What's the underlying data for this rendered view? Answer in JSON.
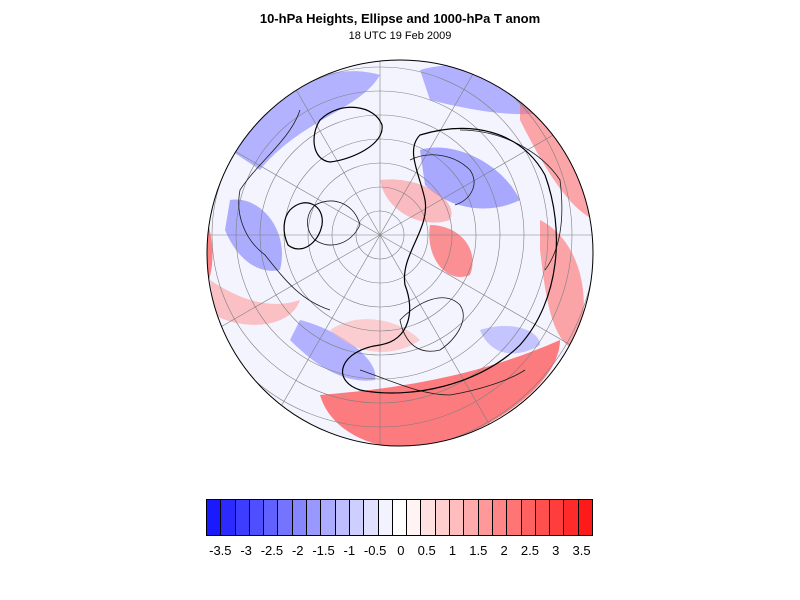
{
  "title": "10-hPa Heights, Ellipse and 1000-hPa T anom",
  "subtitle": "18 UTC 19 Feb 2009",
  "colorbar": {
    "colors": [
      "#1a1aff",
      "#2b2bff",
      "#3d3dff",
      "#4f4fff",
      "#6161ff",
      "#7474ff",
      "#8686ff",
      "#9898ff",
      "#ababff",
      "#bdbdff",
      "#cfcfff",
      "#e1e1ff",
      "#f3f3ff",
      "#ffffff",
      "#fff3f3",
      "#ffe1e1",
      "#ffcfcf",
      "#ffbdbd",
      "#ffabab",
      "#ff9898",
      "#ff8686",
      "#ff7474",
      "#ff6161",
      "#ff4f4f",
      "#ff3d3d",
      "#ff2b2b",
      "#ff1a1a"
    ],
    "labels": [
      "-3.5",
      "-3",
      "-2.5",
      "-2",
      "-1.5",
      "-1",
      "-0.5",
      "0",
      "0.5",
      "1",
      "1.5",
      "2",
      "2.5",
      "3",
      "3.5"
    ]
  }
}
